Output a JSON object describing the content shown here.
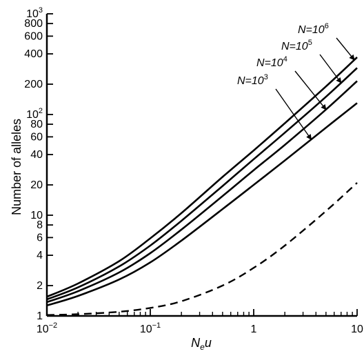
{
  "chart_data": {
    "type": "line",
    "xlabel": "N",
    "xlabel_sub": "e",
    "xlabel_tail": "u",
    "ylabel": "Number of alleles",
    "x_scale": "log",
    "y_scale": "log",
    "xlim": [
      0.01,
      10
    ],
    "ylim": [
      1,
      1000
    ],
    "grid": false,
    "x_ticks": [
      {
        "value": 0.01,
        "label": "10",
        "sup": "−2"
      },
      {
        "value": 0.1,
        "label": "10",
        "sup": "−1"
      },
      {
        "value": 1,
        "label": "1",
        "sup": ""
      },
      {
        "value": 10,
        "label": "10",
        "sup": ""
      }
    ],
    "y_ticks": [
      {
        "value": 1,
        "label": "1",
        "sup": ""
      },
      {
        "value": 2,
        "label": "2",
        "sup": ""
      },
      {
        "value": 4,
        "label": "4",
        "sup": ""
      },
      {
        "value": 6,
        "label": "6",
        "sup": ""
      },
      {
        "value": 8,
        "label": "8",
        "sup": ""
      },
      {
        "value": 10,
        "label": "10",
        "sup": ""
      },
      {
        "value": 20,
        "label": "20",
        "sup": ""
      },
      {
        "value": 40,
        "label": "40",
        "sup": ""
      },
      {
        "value": 60,
        "label": "60",
        "sup": ""
      },
      {
        "value": 80,
        "label": "80",
        "sup": ""
      },
      {
        "value": 100,
        "label": "10",
        "sup": "2"
      },
      {
        "value": 200,
        "label": "200",
        "sup": ""
      },
      {
        "value": 400,
        "label": "400",
        "sup": ""
      },
      {
        "value": 600,
        "label": "600",
        "sup": ""
      },
      {
        "value": 800,
        "label": "800",
        "sup": ""
      },
      {
        "value": 1000,
        "label": "10",
        "sup": "3"
      }
    ],
    "series": [
      {
        "name": "N=10",
        "name_sup": "6",
        "style": "solid",
        "x": [
          0.01,
          0.02,
          0.05,
          0.1,
          0.2,
          0.5,
          1,
          2,
          5,
          10
        ],
        "y": [
          1.55,
          2.1,
          3.5,
          5.9,
          10.5,
          24,
          44,
          82,
          190,
          370
        ]
      },
      {
        "name": "N=10",
        "name_sup": "5",
        "style": "solid",
        "x": [
          0.01,
          0.02,
          0.05,
          0.1,
          0.2,
          0.5,
          1,
          2,
          5,
          10
        ],
        "y": [
          1.46,
          1.92,
          3.1,
          5.0,
          8.8,
          19.5,
          36,
          66,
          150,
          290
        ]
      },
      {
        "name": "N=10",
        "name_sup": "4",
        "style": "solid",
        "x": [
          0.01,
          0.02,
          0.05,
          0.1,
          0.2,
          0.5,
          1,
          2,
          5,
          10
        ],
        "y": [
          1.37,
          1.76,
          2.7,
          4.2,
          7.2,
          15.5,
          28,
          50,
          112,
          215
        ]
      },
      {
        "name": "N=10",
        "name_sup": "3",
        "style": "solid",
        "x": [
          0.01,
          0.02,
          0.05,
          0.1,
          0.2,
          0.5,
          1,
          2,
          5,
          10
        ],
        "y": [
          1.27,
          1.58,
          2.3,
          3.4,
          5.6,
          11.5,
          20,
          35,
          74,
          130
        ]
      },
      {
        "name": "",
        "name_sup": "",
        "style": "dashed",
        "x": [
          0.01,
          0.02,
          0.05,
          0.1,
          0.2,
          0.5,
          1,
          2,
          5,
          10
        ],
        "y": [
          1.02,
          1.04,
          1.1,
          1.2,
          1.4,
          2.0,
          3.0,
          5.0,
          11,
          21
        ]
      }
    ]
  }
}
